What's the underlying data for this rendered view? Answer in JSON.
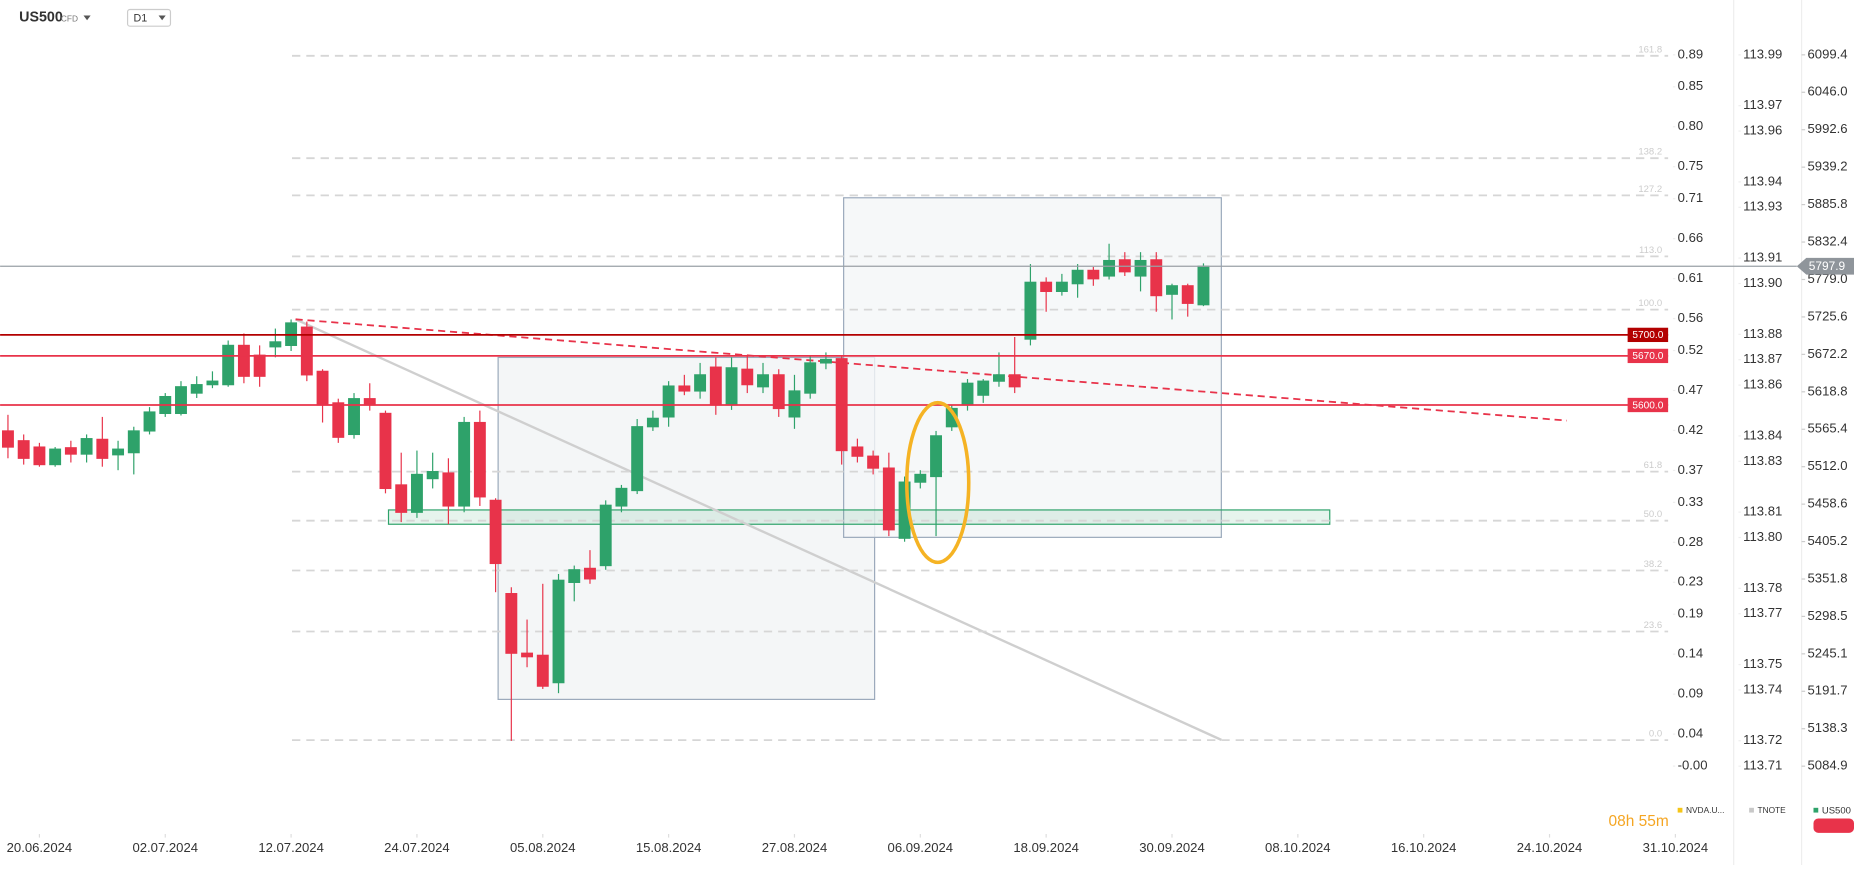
{
  "chart_data": {
    "type": "candlestick",
    "symbol": "US500",
    "symbol_type": "CFD",
    "timeframe": "D1",
    "timer": "08h 55m",
    "up_color": "#2ea26a",
    "down_color": "#e8334a",
    "x": [
      -2,
      -1,
      0,
      1,
      2,
      3,
      4,
      5,
      6,
      7,
      8,
      9,
      10,
      11,
      12,
      13,
      14,
      15,
      16,
      17,
      18,
      19,
      20,
      21,
      22,
      23,
      24,
      25,
      26,
      27,
      28,
      29,
      30,
      31,
      32,
      33,
      34,
      35,
      36,
      37,
      38,
      39,
      40,
      41,
      42,
      43,
      44,
      45,
      46,
      47,
      48,
      49,
      50,
      51,
      52,
      53,
      54,
      55,
      56,
      57,
      58,
      59,
      60,
      61,
      62,
      63,
      64,
      65,
      66,
      67,
      68,
      69,
      70,
      71,
      72,
      73,
      74
    ],
    "open": [
      5563,
      5549,
      5540,
      5515,
      5539,
      5530,
      5551,
      5529,
      5532,
      5563,
      5588,
      5588,
      5617,
      5629,
      5629,
      5685,
      5671,
      5683,
      5685,
      5711,
      5648,
      5603,
      5558,
      5609,
      5588,
      5486,
      5447,
      5495,
      5503,
      5456,
      5575,
      5464,
      5331,
      5246,
      5243,
      5204,
      5347,
      5367,
      5371,
      5456,
      5478,
      5569,
      5583,
      5627,
      5620,
      5654,
      5600,
      5651,
      5626,
      5643,
      5583,
      5617,
      5660,
      5666,
      5540,
      5527,
      5510,
      5410,
      5490,
      5498,
      5569,
      5600,
      5614,
      5634,
      5643,
      5694,
      5775,
      5762,
      5773,
      5792,
      5784,
      5807,
      5784,
      5807,
      5758,
      5770,
      5743
    ],
    "high": [
      5586,
      5558,
      5546,
      5540,
      5549,
      5558,
      5583,
      5549,
      5569,
      5597,
      5617,
      5634,
      5641,
      5648,
      5692,
      5702,
      5685,
      5709,
      5722,
      5719,
      5651,
      5609,
      5617,
      5631,
      5592,
      5532,
      5535,
      5532,
      5524,
      5583,
      5592,
      5467,
      5340,
      5294,
      5345,
      5359,
      5371,
      5393,
      5464,
      5486,
      5580,
      5592,
      5634,
      5643,
      5660,
      5668,
      5668,
      5671,
      5660,
      5651,
      5643,
      5671,
      5675,
      5671,
      5552,
      5535,
      5532,
      5498,
      5507,
      5563,
      5600,
      5637,
      5637,
      5675,
      5697,
      5801,
      5782,
      5787,
      5801,
      5797,
      5830,
      5818,
      5818,
      5818,
      5773,
      5773,
      5802
    ],
    "low": [
      5524,
      5515,
      5512,
      5512,
      5518,
      5518,
      5512,
      5507,
      5501,
      5558,
      5583,
      5585,
      5610,
      5624,
      5626,
      5631,
      5626,
      5668,
      5677,
      5634,
      5575,
      5546,
      5552,
      5592,
      5474,
      5433,
      5439,
      5481,
      5430,
      5447,
      5456,
      5333,
      5121,
      5226,
      5195,
      5189,
      5320,
      5345,
      5365,
      5447,
      5473,
      5563,
      5569,
      5614,
      5609,
      5586,
      5593,
      5617,
      5617,
      5583,
      5566,
      5609,
      5651,
      5515,
      5518,
      5501,
      5413,
      5405,
      5481,
      5413,
      5563,
      5592,
      5603,
      5626,
      5617,
      5685,
      5733,
      5756,
      5753,
      5770,
      5779,
      5784,
      5762,
      5733,
      5722,
      5726,
      5741
    ],
    "close": [
      5540,
      5524,
      5515,
      5537,
      5530,
      5552,
      5524,
      5537,
      5563,
      5590,
      5612,
      5626,
      5629,
      5634,
      5685,
      5641,
      5641,
      5690,
      5717,
      5643,
      5600,
      5554,
      5609,
      5600,
      5481,
      5447,
      5501,
      5505,
      5456,
      5575,
      5469,
      5374,
      5246,
      5241,
      5199,
      5350,
      5365,
      5352,
      5457,
      5481,
      5569,
      5581,
      5627,
      5620,
      5643,
      5600,
      5653,
      5629,
      5643,
      5595,
      5620,
      5660,
      5665,
      5535,
      5527,
      5510,
      5422,
      5490,
      5501,
      5556,
      5595,
      5631,
      5634,
      5643,
      5626,
      5775,
      5762,
      5775,
      5792,
      5780,
      5806,
      5790,
      5806,
      5756,
      5770,
      5745,
      5797.9
    ],
    "xlim": [
      -2.5,
      104.6
    ],
    "xticks": [
      {
        "value": 0,
        "label": "20.06.2024"
      },
      {
        "value": 8,
        "label": "02.07.2024"
      },
      {
        "value": 16,
        "label": "12.07.2024"
      },
      {
        "value": 24,
        "label": "24.07.2024"
      },
      {
        "value": 32,
        "label": "05.08.2024"
      },
      {
        "value": 40,
        "label": "15.08.2024"
      },
      {
        "value": 48,
        "label": "27.08.2024"
      },
      {
        "value": 56,
        "label": "06.09.2024"
      },
      {
        "value": 64,
        "label": "18.09.2024"
      },
      {
        "value": 72,
        "label": "30.09.2024"
      },
      {
        "value": 80,
        "label": "08.10.2024"
      },
      {
        "value": 88,
        "label": "16.10.2024"
      },
      {
        "value": 96,
        "label": "24.10.2024"
      },
      {
        "value": 104,
        "label": "31.10.2024"
      }
    ],
    "ylim": [
      5047.6,
      6177.6
    ],
    "yticks": [
      6099.4,
      {
        "value": 6046.0,
        "label": "6046.0"
      },
      5992.6,
      5939.2,
      5885.8,
      5832.4,
      {
        "value": 5779.0,
        "label": "5779.0"
      },
      5725.6,
      5672.2,
      5618.8,
      5565.4,
      {
        "value": 5512.0,
        "label": "5512.0"
      },
      5458.6,
      5405.2,
      5351.8,
      5298.5,
      5245.1,
      5191.7,
      5138.3,
      5084.9
    ],
    "overlay_axes": [
      {
        "name": "NVDA.U...",
        "color": "#f5c518",
        "lim": [
          -0.0328,
          0.9586
        ],
        "ticks": [
          0.89,
          0.85,
          {
            "value": 0.8,
            "label": "0.80"
          },
          0.75,
          0.71,
          0.66,
          0.61,
          0.56,
          0.52,
          0.47,
          0.42,
          0.37,
          0.33,
          0.28,
          0.23,
          0.19,
          0.14,
          0.09,
          0.04,
          {
            "value": 0,
            "label": "-0.00"
          }
        ]
      },
      {
        "name": "TNOTE",
        "color": "#c8c8c8",
        "lim": [
          113.6997,
          114.0116
        ],
        "ticks": [
          113.99,
          113.97,
          113.96,
          113.94,
          113.93,
          113.91,
          {
            "value": 113.9,
            "label": "113.90"
          },
          113.88,
          113.87,
          113.86,
          113.84,
          113.83,
          113.81,
          {
            "value": 113.8,
            "label": "113.80"
          },
          113.78,
          113.77,
          113.75,
          113.74,
          113.72,
          113.71
        ]
      }
    ],
    "legend_name": "US500",
    "levels": [
      {
        "value": 5700,
        "label": "5700.0",
        "color": "#b30000"
      },
      {
        "value": 5670,
        "label": "5670.0",
        "color": "#e8334a"
      },
      {
        "value": 5600,
        "label": "5600.0",
        "color": "#e8334a"
      }
    ],
    "fib_levels": [
      {
        "value": 6098,
        "label": "161.8"
      },
      {
        "value": 5952,
        "label": "138.2"
      },
      {
        "value": 5899,
        "label": "127.2"
      },
      {
        "value": 5812,
        "label": "113.0"
      },
      {
        "value": 5736,
        "label": "100.0"
      },
      {
        "value": 5505,
        "label": "61.8"
      },
      {
        "value": 5435,
        "label": "50.0"
      },
      {
        "value": 5364,
        "label": "38.2"
      },
      {
        "value": 5277,
        "label": "23.6"
      },
      {
        "value": 5122,
        "label": "0.0"
      }
    ]
  }
}
